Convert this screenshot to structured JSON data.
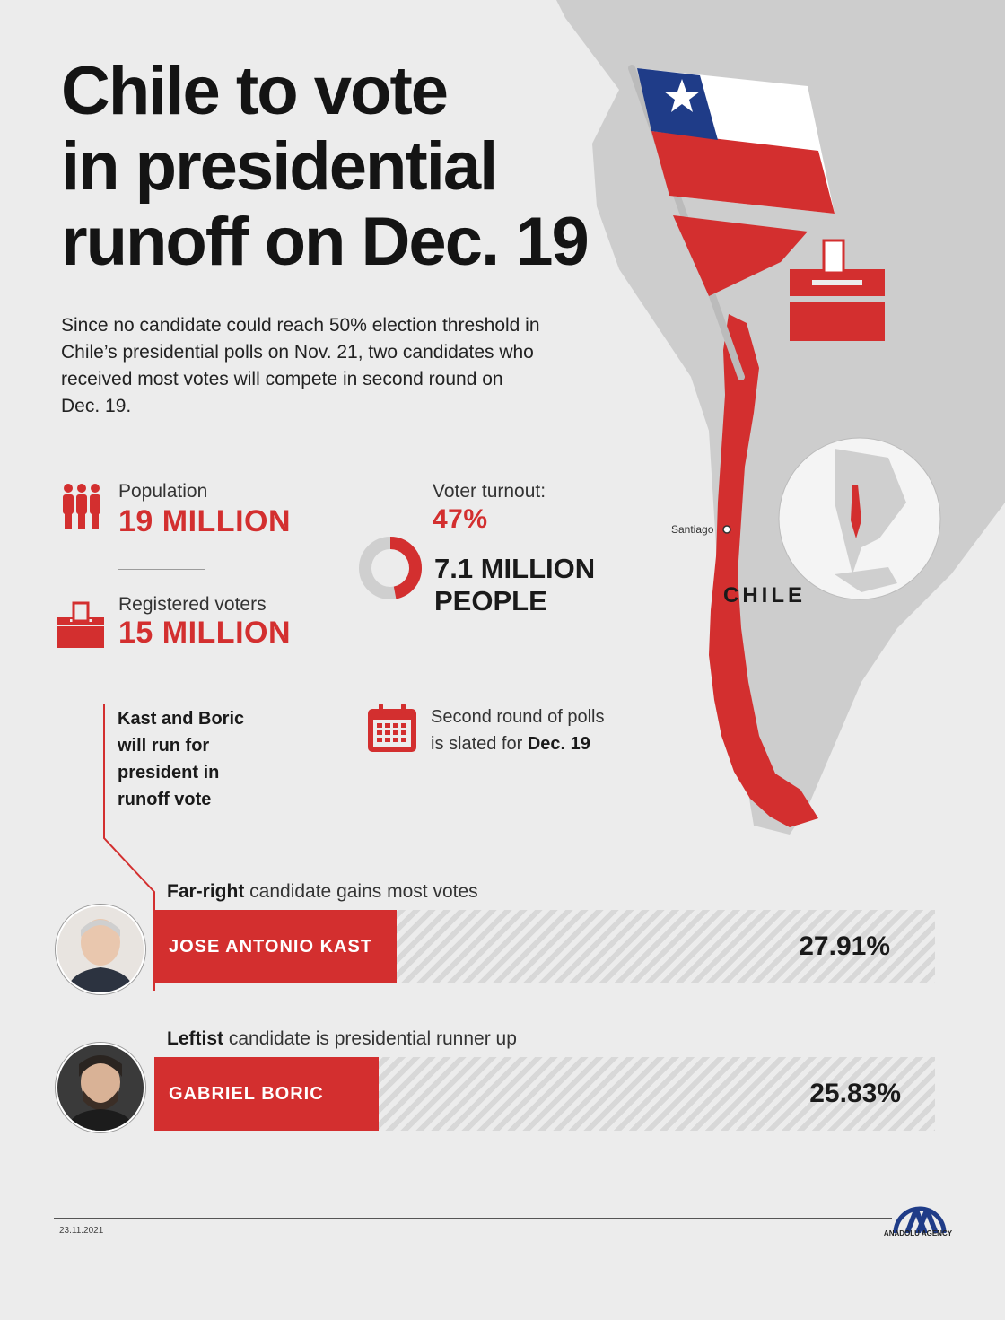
{
  "title": {
    "line1": "Chile to vote",
    "line2": "in presidential",
    "line3": "runoff on Dec. 19"
  },
  "intro": "Since no candidate could reach 50% election threshold in Chile’s presidential polls on Nov. 21, two candidates who received most votes will compete in second round on Dec. 19.",
  "stats": {
    "population_label": "Population",
    "population_value": "19 MILLION",
    "voters_label": "Registered voters",
    "voters_value": "15 MILLION",
    "turnout_label": "Voter turnout:",
    "turnout_value": "47%",
    "turnout_fraction": 0.47,
    "turnout_people_line1": "7.1 MILLION",
    "turnout_people_line2": "PEOPLE"
  },
  "candidates_note": {
    "line1": "Kast and Boric",
    "line2": "will run for",
    "line3": "president in",
    "line4": "runoff vote"
  },
  "second_round": {
    "line1": "Second round of polls",
    "line2_prefix": "is slated for ",
    "line2_bold": "Dec. 19"
  },
  "map": {
    "santiago": "Santiago",
    "country": "CHILE"
  },
  "candidates": [
    {
      "caption_bold": "Far-right",
      "caption_rest": " candidate gains most votes",
      "name": "JOSE ANTONIO KAST",
      "percent_label": "27.91%",
      "percent": 27.91
    },
    {
      "caption_bold": "Leftist",
      "caption_rest": " candidate is presidential runner up",
      "name": "GABRIEL BORIC",
      "percent_label": "25.83%",
      "percent": 25.83
    }
  ],
  "footer": {
    "date": "23.11.2021",
    "logo_text": "ANADOLU AGENCY"
  },
  "colors": {
    "accent": "#d32f2f",
    "background": "#ececec",
    "land": "#c9c9c9"
  }
}
